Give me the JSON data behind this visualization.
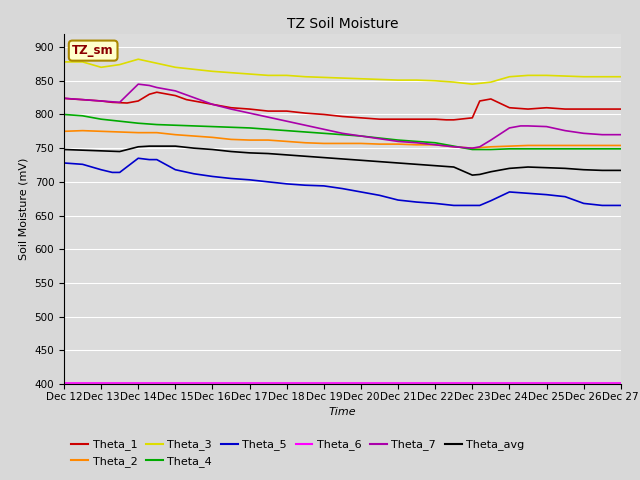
{
  "title": "TZ Soil Moisture",
  "xlabel": "Time",
  "ylabel": "Soil Moisture (mV)",
  "ylim": [
    400,
    920
  ],
  "yticks": [
    400,
    450,
    500,
    550,
    600,
    650,
    700,
    750,
    800,
    850,
    900
  ],
  "x_start": 12,
  "x_end": 27,
  "xtick_positions": [
    12,
    13,
    14,
    15,
    16,
    17,
    18,
    19,
    20,
    21,
    22,
    23,
    24,
    25,
    26,
    27
  ],
  "xtick_labels": [
    "Dec 12",
    "Dec 13",
    "Dec 14",
    "Dec 15",
    "Dec 16",
    "Dec 17",
    "Dec 18",
    "Dec 19",
    "Dec 20",
    "Dec 21",
    "Dec 22",
    "Dec 23",
    "Dec 24",
    "Dec 25",
    "Dec 26",
    "Dec 27"
  ],
  "fig_bg_color": "#d8d8d8",
  "plot_bg_color": "#dcdcdc",
  "legend_label": "TZ_sm",
  "series_order": [
    "Theta_1",
    "Theta_2",
    "Theta_3",
    "Theta_4",
    "Theta_5",
    "Theta_6",
    "Theta_7",
    "Theta_avg"
  ],
  "series": {
    "Theta_1": {
      "color": "#cc0000",
      "points": [
        [
          12,
          824
        ],
        [
          12.2,
          823
        ],
        [
          12.5,
          822
        ],
        [
          13,
          820
        ],
        [
          13.3,
          818
        ],
        [
          13.7,
          817
        ],
        [
          14,
          820
        ],
        [
          14.3,
          830
        ],
        [
          14.5,
          833
        ],
        [
          15,
          828
        ],
        [
          15.3,
          822
        ],
        [
          15.5,
          820
        ],
        [
          16,
          815
        ],
        [
          16.5,
          810
        ],
        [
          17,
          808
        ],
        [
          17.5,
          805
        ],
        [
          18,
          805
        ],
        [
          18.5,
          802
        ],
        [
          19,
          800
        ],
        [
          19.5,
          797
        ],
        [
          20,
          795
        ],
        [
          20.5,
          793
        ],
        [
          21,
          793
        ],
        [
          21.5,
          793
        ],
        [
          22,
          793
        ],
        [
          22.3,
          792
        ],
        [
          22.5,
          792
        ],
        [
          23,
          795
        ],
        [
          23.2,
          820
        ],
        [
          23.5,
          823
        ],
        [
          24,
          810
        ],
        [
          24.5,
          808
        ],
        [
          25,
          810
        ],
        [
          25.5,
          808
        ],
        [
          26,
          808
        ],
        [
          26.5,
          808
        ],
        [
          27,
          808
        ]
      ]
    },
    "Theta_2": {
      "color": "#ff8800",
      "points": [
        [
          12,
          775
        ],
        [
          12.5,
          776
        ],
        [
          13,
          775
        ],
        [
          13.5,
          774
        ],
        [
          14,
          773
        ],
        [
          14.5,
          773
        ],
        [
          15,
          770
        ],
        [
          15.5,
          768
        ],
        [
          16,
          766
        ],
        [
          16.5,
          763
        ],
        [
          17,
          762
        ],
        [
          17.5,
          762
        ],
        [
          18,
          760
        ],
        [
          18.5,
          758
        ],
        [
          19,
          757
        ],
        [
          19.5,
          757
        ],
        [
          20,
          757
        ],
        [
          20.5,
          756
        ],
        [
          21,
          756
        ],
        [
          21.5,
          755
        ],
        [
          22,
          755
        ],
        [
          22.5,
          752
        ],
        [
          23,
          750
        ],
        [
          23.5,
          752
        ],
        [
          24,
          753
        ],
        [
          24.5,
          754
        ],
        [
          25,
          754
        ],
        [
          25.5,
          754
        ],
        [
          26,
          754
        ],
        [
          26.5,
          754
        ],
        [
          27,
          754
        ]
      ]
    },
    "Theta_3": {
      "color": "#dddd00",
      "points": [
        [
          12,
          878
        ],
        [
          12.5,
          878
        ],
        [
          13,
          870
        ],
        [
          13.5,
          874
        ],
        [
          14,
          882
        ],
        [
          14.5,
          876
        ],
        [
          15,
          870
        ],
        [
          15.5,
          867
        ],
        [
          16,
          864
        ],
        [
          16.5,
          862
        ],
        [
          17,
          860
        ],
        [
          17.5,
          858
        ],
        [
          18,
          858
        ],
        [
          18.5,
          856
        ],
        [
          19,
          855
        ],
        [
          19.5,
          854
        ],
        [
          20,
          853
        ],
        [
          20.5,
          852
        ],
        [
          21,
          851
        ],
        [
          21.5,
          851
        ],
        [
          22,
          850
        ],
        [
          22.5,
          848
        ],
        [
          23,
          845
        ],
        [
          23.5,
          848
        ],
        [
          24,
          856
        ],
        [
          24.5,
          858
        ],
        [
          25,
          858
        ],
        [
          25.5,
          857
        ],
        [
          26,
          856
        ],
        [
          26.5,
          856
        ],
        [
          27,
          856
        ]
      ]
    },
    "Theta_4": {
      "color": "#00aa00",
      "points": [
        [
          12,
          800
        ],
        [
          12.5,
          798
        ],
        [
          13,
          793
        ],
        [
          13.5,
          790
        ],
        [
          14,
          787
        ],
        [
          14.5,
          785
        ],
        [
          15,
          784
        ],
        [
          15.5,
          783
        ],
        [
          16,
          782
        ],
        [
          16.5,
          781
        ],
        [
          17,
          780
        ],
        [
          17.5,
          778
        ],
        [
          18,
          776
        ],
        [
          18.5,
          774
        ],
        [
          19,
          772
        ],
        [
          19.5,
          770
        ],
        [
          20,
          768
        ],
        [
          20.5,
          765
        ],
        [
          21,
          762
        ],
        [
          21.5,
          760
        ],
        [
          22,
          758
        ],
        [
          22.5,
          753
        ],
        [
          23,
          748
        ],
        [
          23.5,
          748
        ],
        [
          24,
          749
        ],
        [
          24.5,
          749
        ],
        [
          25,
          749
        ],
        [
          25.5,
          749
        ],
        [
          26,
          749
        ],
        [
          26.5,
          749
        ],
        [
          27,
          749
        ]
      ]
    },
    "Theta_5": {
      "color": "#0000cc",
      "points": [
        [
          12,
          728
        ],
        [
          12.5,
          726
        ],
        [
          13,
          718
        ],
        [
          13.3,
          714
        ],
        [
          13.5,
          714
        ],
        [
          14,
          735
        ],
        [
          14.3,
          733
        ],
        [
          14.5,
          733
        ],
        [
          15,
          718
        ],
        [
          15.5,
          712
        ],
        [
          16,
          708
        ],
        [
          16.5,
          705
        ],
        [
          17,
          703
        ],
        [
          17.5,
          700
        ],
        [
          18,
          697
        ],
        [
          18.5,
          695
        ],
        [
          19,
          694
        ],
        [
          19.5,
          690
        ],
        [
          20,
          685
        ],
        [
          20.5,
          680
        ],
        [
          21,
          673
        ],
        [
          21.5,
          670
        ],
        [
          22,
          668
        ],
        [
          22.5,
          665
        ],
        [
          23,
          665
        ],
        [
          23.2,
          665
        ],
        [
          23.5,
          672
        ],
        [
          24,
          685
        ],
        [
          24.5,
          683
        ],
        [
          25,
          681
        ],
        [
          25.5,
          678
        ],
        [
          26,
          668
        ],
        [
          26.5,
          665
        ],
        [
          27,
          665
        ]
      ]
    },
    "Theta_6": {
      "color": "#ff00ff",
      "points": [
        [
          12,
          402
        ],
        [
          13,
          402
        ],
        [
          14,
          402
        ],
        [
          15,
          402
        ],
        [
          16,
          402
        ],
        [
          17,
          402
        ],
        [
          18,
          402
        ],
        [
          19,
          402
        ],
        [
          20,
          402
        ],
        [
          21,
          402
        ],
        [
          22,
          402
        ],
        [
          23,
          402
        ],
        [
          24,
          402
        ],
        [
          25,
          402
        ],
        [
          26,
          402
        ],
        [
          27,
          402
        ]
      ]
    },
    "Theta_7": {
      "color": "#aa00aa",
      "points": [
        [
          12,
          824
        ],
        [
          12.5,
          822
        ],
        [
          13,
          820
        ],
        [
          13.5,
          818
        ],
        [
          14,
          845
        ],
        [
          14.3,
          843
        ],
        [
          14.5,
          840
        ],
        [
          15,
          835
        ],
        [
          15.5,
          825
        ],
        [
          16,
          815
        ],
        [
          16.5,
          808
        ],
        [
          17,
          802
        ],
        [
          17.5,
          796
        ],
        [
          18,
          790
        ],
        [
          18.5,
          784
        ],
        [
          19,
          778
        ],
        [
          19.5,
          772
        ],
        [
          20,
          768
        ],
        [
          20.5,
          764
        ],
        [
          21,
          760
        ],
        [
          21.5,
          758
        ],
        [
          22,
          755
        ],
        [
          22.5,
          752
        ],
        [
          23,
          750
        ],
        [
          23.2,
          752
        ],
        [
          23.5,
          762
        ],
        [
          24,
          780
        ],
        [
          24.3,
          783
        ],
        [
          24.5,
          783
        ],
        [
          25,
          782
        ],
        [
          25.5,
          776
        ],
        [
          26,
          772
        ],
        [
          26.5,
          770
        ],
        [
          27,
          770
        ]
      ]
    },
    "Theta_avg": {
      "color": "#000000",
      "points": [
        [
          12,
          748
        ],
        [
          12.5,
          747
        ],
        [
          13,
          746
        ],
        [
          13.5,
          745
        ],
        [
          14,
          752
        ],
        [
          14.3,
          753
        ],
        [
          14.5,
          753
        ],
        [
          15,
          753
        ],
        [
          15.5,
          750
        ],
        [
          16,
          748
        ],
        [
          16.5,
          745
        ],
        [
          17,
          743
        ],
        [
          17.5,
          742
        ],
        [
          18,
          740
        ],
        [
          18.5,
          738
        ],
        [
          19,
          736
        ],
        [
          19.5,
          734
        ],
        [
          20,
          732
        ],
        [
          20.5,
          730
        ],
        [
          21,
          728
        ],
        [
          21.5,
          726
        ],
        [
          22,
          724
        ],
        [
          22.5,
          722
        ],
        [
          23,
          710
        ],
        [
          23.2,
          711
        ],
        [
          23.5,
          715
        ],
        [
          24,
          720
        ],
        [
          24.5,
          722
        ],
        [
          25,
          721
        ],
        [
          25.5,
          720
        ],
        [
          26,
          718
        ],
        [
          26.5,
          717
        ],
        [
          27,
          717
        ]
      ]
    }
  }
}
